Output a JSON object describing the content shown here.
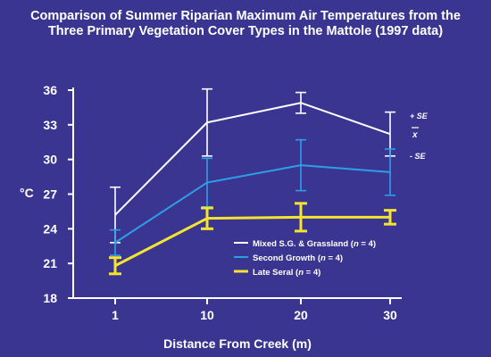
{
  "chart_data": {
    "type": "line",
    "title": "Comparison of Summer Riparian Maximum Air Temperatures from the",
    "subtitle": "Three Primary Vegetation Cover Types in the Mattole (1997 data)",
    "xlabel": "Distance From Creek (m)",
    "ylabel": "°C",
    "categories": [
      "1",
      "10",
      "20",
      "30"
    ],
    "yticks": [
      "18",
      "21",
      "24",
      "27",
      "30",
      "33",
      "36"
    ],
    "ylim": [
      18,
      36.6
    ],
    "grid": false,
    "legend_placement": "bottom-right",
    "series": [
      {
        "name_pre": "Mixed S.G. & Grassland (",
        "name_n": "n",
        "name_post": " = 4)",
        "color": "#ffffff",
        "values": [
          25.2,
          33.2,
          34.9,
          32.2
        ],
        "se": [
          2.4,
          2.9,
          0.9,
          1.9
        ]
      },
      {
        "name_pre": "Second Growth (",
        "name_n": "n",
        "name_post": " = 4)",
        "color": "#2f9ee8",
        "values": [
          22.8,
          28.0,
          29.5,
          28.9
        ],
        "se": [
          1.1,
          2.1,
          2.2,
          2.0
        ]
      },
      {
        "name_pre": "Late Seral (",
        "name_n": "n",
        "name_post": " = 4)",
        "color": "#f2e430",
        "values": [
          20.8,
          24.9,
          25.0,
          25.0
        ],
        "se": [
          0.7,
          0.9,
          1.2,
          0.6
        ]
      }
    ],
    "annotations": {
      "plus_se": "+ SE",
      "mean": "x",
      "minus_se": "- SE"
    }
  }
}
